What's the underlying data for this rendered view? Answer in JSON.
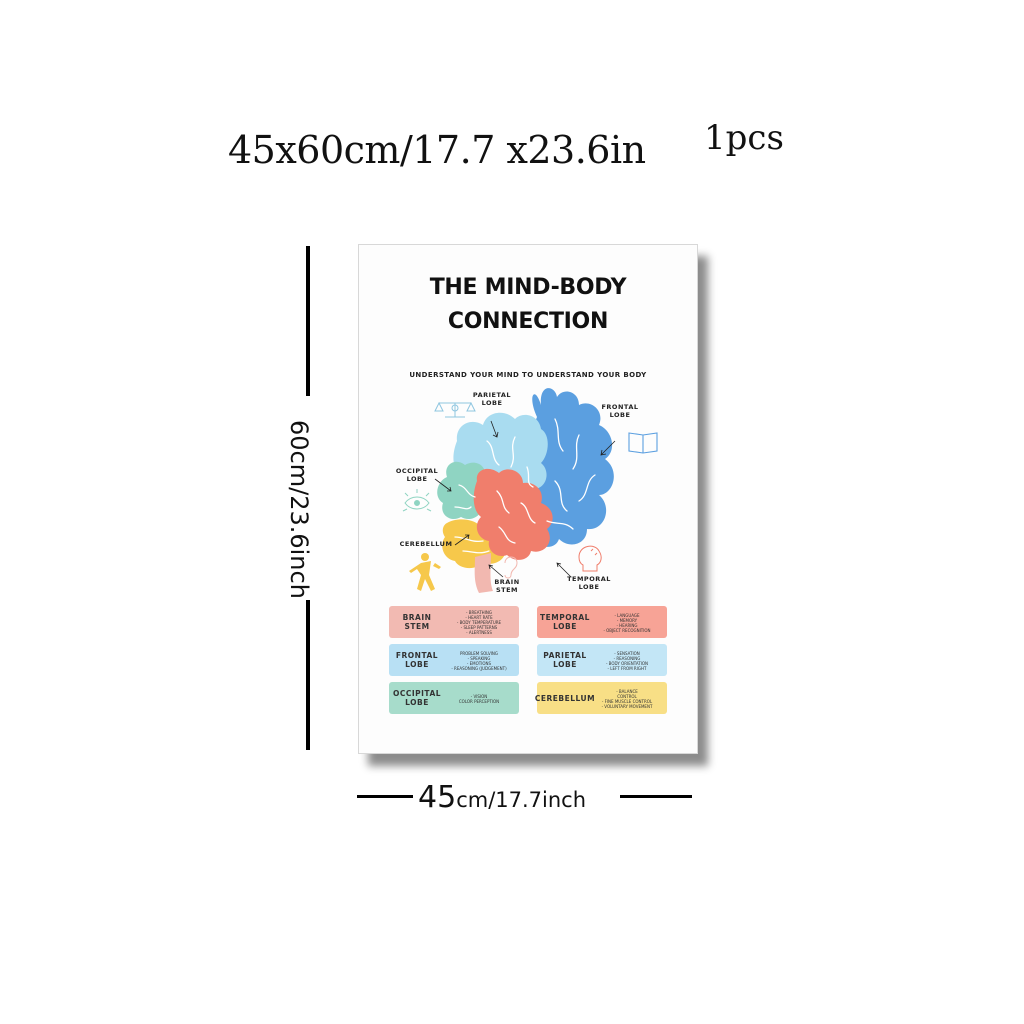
{
  "size_caption": {
    "main": "45x60cm/17.7 x23.6in",
    "count": "1pcs"
  },
  "dimension_vertical": "60cm/23.6inch",
  "dimension_horizontal": {
    "value": "45",
    "rest": "cm/17.7inch"
  },
  "poster": {
    "title": [
      "THE MIND-BODY",
      "CONNECTION"
    ],
    "subtitle": "UNDERSTAND YOUR MIND TO UNDERSTAND YOUR BODY",
    "labels": {
      "parietal": [
        "PARIETAL",
        "LOBE"
      ],
      "frontal": [
        "FRONTAL",
        "LOBE"
      ],
      "occipital": [
        "OCCIPITAL",
        "LOBE"
      ],
      "cerebellum": [
        "CEREBELLUM"
      ],
      "brain_stem": [
        "BRAIN",
        "STEM"
      ],
      "temporal": [
        "TEMPORAL",
        "LOBE"
      ]
    },
    "colors": {
      "parietal": "#a9dcf0",
      "frontal": "#5b9fe0",
      "occipital": "#8fd4c2",
      "temporal": "#f07e6c",
      "cerebellum": "#f6c84b",
      "stem": "#f2b8b0"
    },
    "icons": [
      "scales-icon",
      "book-icon",
      "eye-icon",
      "person-kicking-icon",
      "head-icon",
      "ear-icon"
    ],
    "cards": [
      {
        "name": [
          "BRAIN",
          "STEM"
        ],
        "color": "#f2bab2",
        "facts": [
          "- BREATHING",
          "- HEART RATE",
          "- BODY TEMPERATURE",
          "- SLEEP PATTERNS",
          "- ALERTNESS"
        ]
      },
      {
        "name": [
          "TEMPORAL",
          "LOBE"
        ],
        "color": "#f7a396",
        "facts": [
          "- LANGUAGE",
          "- MEMORY",
          "- HEARING",
          "- OBJECT RECOGNITION"
        ]
      },
      {
        "name": [
          "FRONTAL",
          "LOBE"
        ],
        "color": "#b8e0f4",
        "facts": [
          "PROBLEM SOLVING",
          "- SPEAKING",
          "- EMOTIONS",
          "- REASONING (JUDGEMENT)"
        ]
      },
      {
        "name": [
          "PARIETAL",
          "LOBE"
        ],
        "color": "#c3e6f6",
        "facts": [
          "- SENSATION",
          "- REASONING",
          "- BODY ORIENTATION",
          "- LEFT FROM RIGHT"
        ]
      },
      {
        "name": [
          "OCCIPITAL",
          "LOBE"
        ],
        "color": "#a7dccb",
        "facts": [
          "- VISION",
          "COLOR PERCEPTION"
        ]
      },
      {
        "name": [
          "CEREBELLUM"
        ],
        "color": "#f8df86",
        "facts": [
          "- BALANCE",
          "CONTROL",
          "- FINE MUSCLE CONTROL",
          "- VOLUNTARY MOVEMENT"
        ]
      }
    ]
  }
}
